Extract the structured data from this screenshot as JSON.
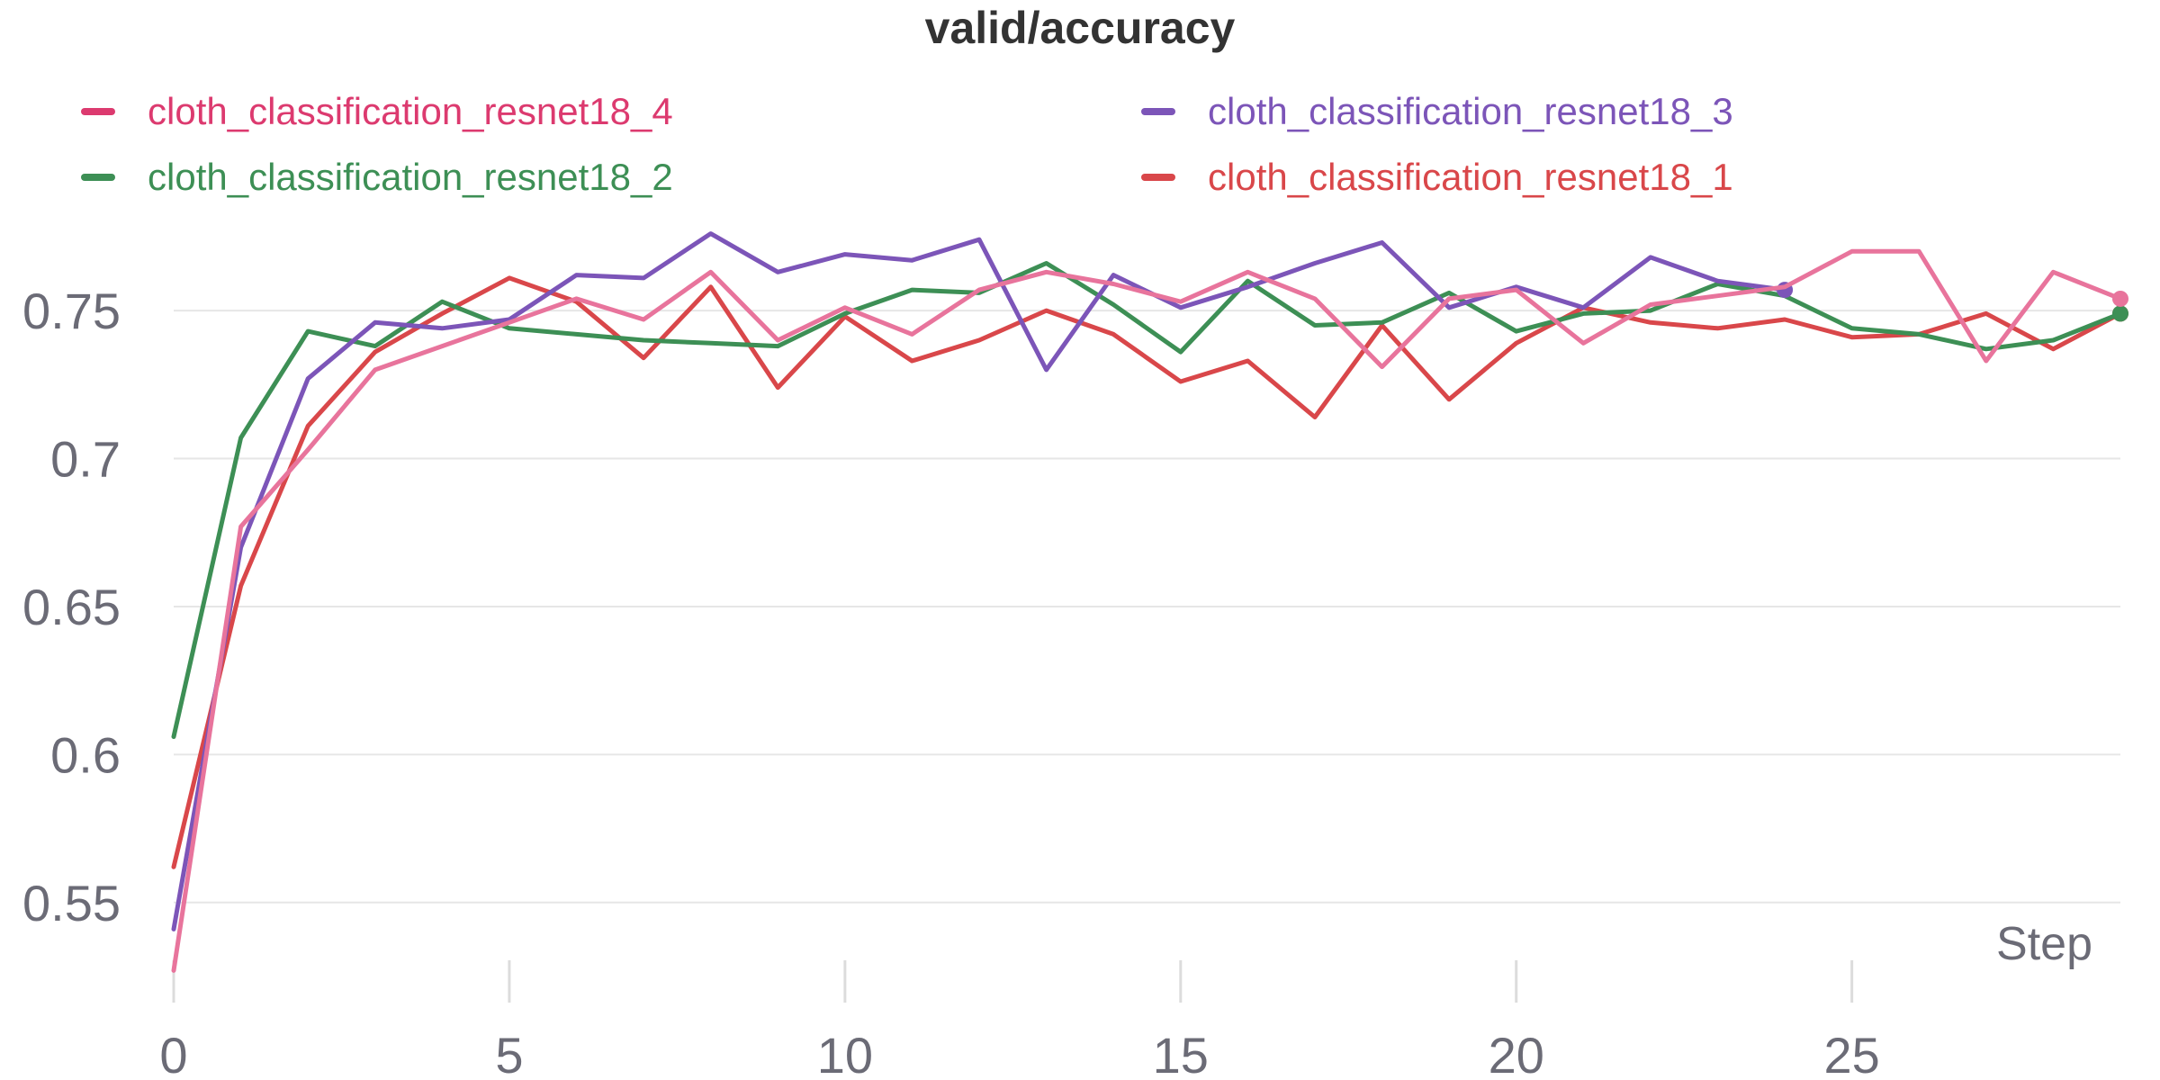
{
  "chart_data": {
    "type": "line",
    "title": "valid/accuracy",
    "xlabel": "Step",
    "ylabel": "",
    "xlim": [
      0,
      29
    ],
    "ylim": [
      0.525,
      0.785
    ],
    "xticks": [
      0,
      5,
      10,
      15,
      20,
      25
    ],
    "yticks": [
      0.55,
      0.6,
      0.65,
      0.7,
      0.75
    ],
    "ytick_labels": [
      "0.55",
      "0.6",
      "0.65",
      "0.7",
      "0.75"
    ],
    "grid": "horizontal",
    "legend_position": "top",
    "series": [
      {
        "name": "cloth_classification_resnet18_4",
        "color": "#e8749c",
        "legend_color": "#dc3a6f",
        "x": [
          0,
          1,
          2,
          3,
          4,
          5,
          6,
          7,
          8,
          9,
          10,
          11,
          12,
          13,
          14,
          15,
          16,
          17,
          18,
          19,
          20,
          21,
          22,
          23,
          24,
          25,
          26,
          27,
          28,
          29
        ],
        "values": [
          0.527,
          0.677,
          0.703,
          0.73,
          0.738,
          0.746,
          0.754,
          0.747,
          0.763,
          0.74,
          0.751,
          0.742,
          0.757,
          0.763,
          0.759,
          0.753,
          0.763,
          0.754,
          0.731,
          0.754,
          0.757,
          0.739,
          0.752,
          0.755,
          0.758,
          0.77,
          0.77,
          0.733,
          0.763,
          0.754
        ]
      },
      {
        "name": "cloth_classification_resnet18_3",
        "color": "#7c55b8",
        "legend_color": "#7c55b8",
        "x": [
          0,
          1,
          2,
          3,
          4,
          5,
          6,
          7,
          8,
          9,
          10,
          11,
          12,
          13,
          14,
          15,
          16,
          17,
          18,
          19,
          20,
          21,
          22,
          23,
          24
        ],
        "values": [
          0.541,
          0.67,
          0.727,
          0.746,
          0.744,
          0.747,
          0.762,
          0.761,
          0.776,
          0.763,
          0.769,
          0.767,
          0.774,
          0.73,
          0.762,
          0.751,
          0.758,
          0.766,
          0.773,
          0.751,
          0.758,
          0.751,
          0.768,
          0.76,
          0.757
        ]
      },
      {
        "name": "cloth_classification_resnet18_2",
        "color": "#3d8f55",
        "legend_color": "#3d8f55",
        "x": [
          0,
          1,
          2,
          3,
          4,
          5,
          6,
          7,
          8,
          9,
          10,
          11,
          12,
          13,
          14,
          15,
          16,
          17,
          18,
          19,
          20,
          21,
          22,
          23,
          24,
          25,
          26,
          27,
          28,
          29
        ],
        "values": [
          0.606,
          0.707,
          0.743,
          0.738,
          0.753,
          0.744,
          0.742,
          0.74,
          0.739,
          0.738,
          0.749,
          0.757,
          0.756,
          0.766,
          0.752,
          0.736,
          0.76,
          0.745,
          0.746,
          0.756,
          0.743,
          0.749,
          0.75,
          0.759,
          0.755,
          0.744,
          0.742,
          0.737,
          0.74,
          0.749
        ]
      },
      {
        "name": "cloth_classification_resnet18_1",
        "color": "#d9474a",
        "legend_color": "#d9474a",
        "x": [
          0,
          1,
          2,
          3,
          4,
          5,
          6,
          7,
          8,
          9,
          10,
          11,
          12,
          13,
          14,
          15,
          16,
          17,
          18,
          19,
          20,
          21,
          22,
          23,
          24,
          25,
          26,
          27,
          28,
          29
        ],
        "values": [
          0.562,
          0.657,
          0.711,
          0.736,
          0.749,
          0.761,
          0.753,
          0.734,
          0.758,
          0.724,
          0.748,
          0.733,
          0.74,
          0.75,
          0.742,
          0.726,
          0.733,
          0.714,
          0.745,
          0.72,
          0.739,
          0.751,
          0.746,
          0.744,
          0.747,
          0.741,
          0.742,
          0.749,
          0.737,
          0.749
        ]
      }
    ]
  }
}
